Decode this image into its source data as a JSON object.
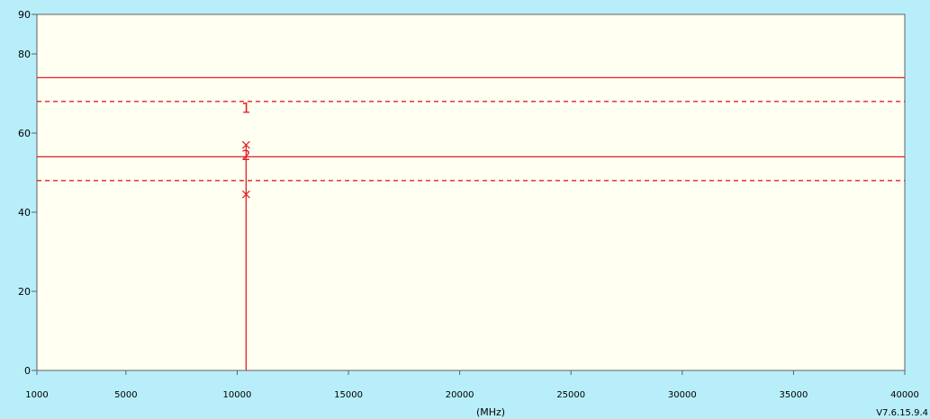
{
  "chart_data": {
    "type": "line",
    "xlabel": "(MHz)",
    "ylabel": "",
    "xlim": [
      1000,
      40000
    ],
    "ylim": [
      0,
      90
    ],
    "x_ticks": [
      1000,
      5000,
      10000,
      15000,
      20000,
      25000,
      30000,
      35000,
      40000
    ],
    "y_ticks": [
      0,
      20,
      40,
      60,
      80,
      90
    ],
    "limit_lines": [
      {
        "y": 74,
        "style": "solid",
        "color": "#e02020"
      },
      {
        "y": 68,
        "style": "dashed",
        "color": "#e02020"
      },
      {
        "y": 54,
        "style": "solid",
        "color": "#e02020"
      },
      {
        "y": 48,
        "style": "dashed",
        "color": "#e02020"
      }
    ],
    "spike": {
      "x": 10400,
      "y_from": 0,
      "y_to": 57,
      "color": "#e02020"
    },
    "cross_markers": [
      {
        "x": 10400,
        "y": 57
      },
      {
        "x": 10400,
        "y": 44.5
      }
    ],
    "labeled_markers": [
      {
        "label": "1",
        "x": 10400,
        "y": 66.5
      },
      {
        "label": "2",
        "x": 10400,
        "y": 54.5
      }
    ],
    "grid": false,
    "plot_background": "#fffff2",
    "version_text": "V7.6.15.9.4"
  },
  "colors": {
    "page_background": "#b7eefa",
    "axis": "#606060",
    "trace": "#e02020"
  }
}
